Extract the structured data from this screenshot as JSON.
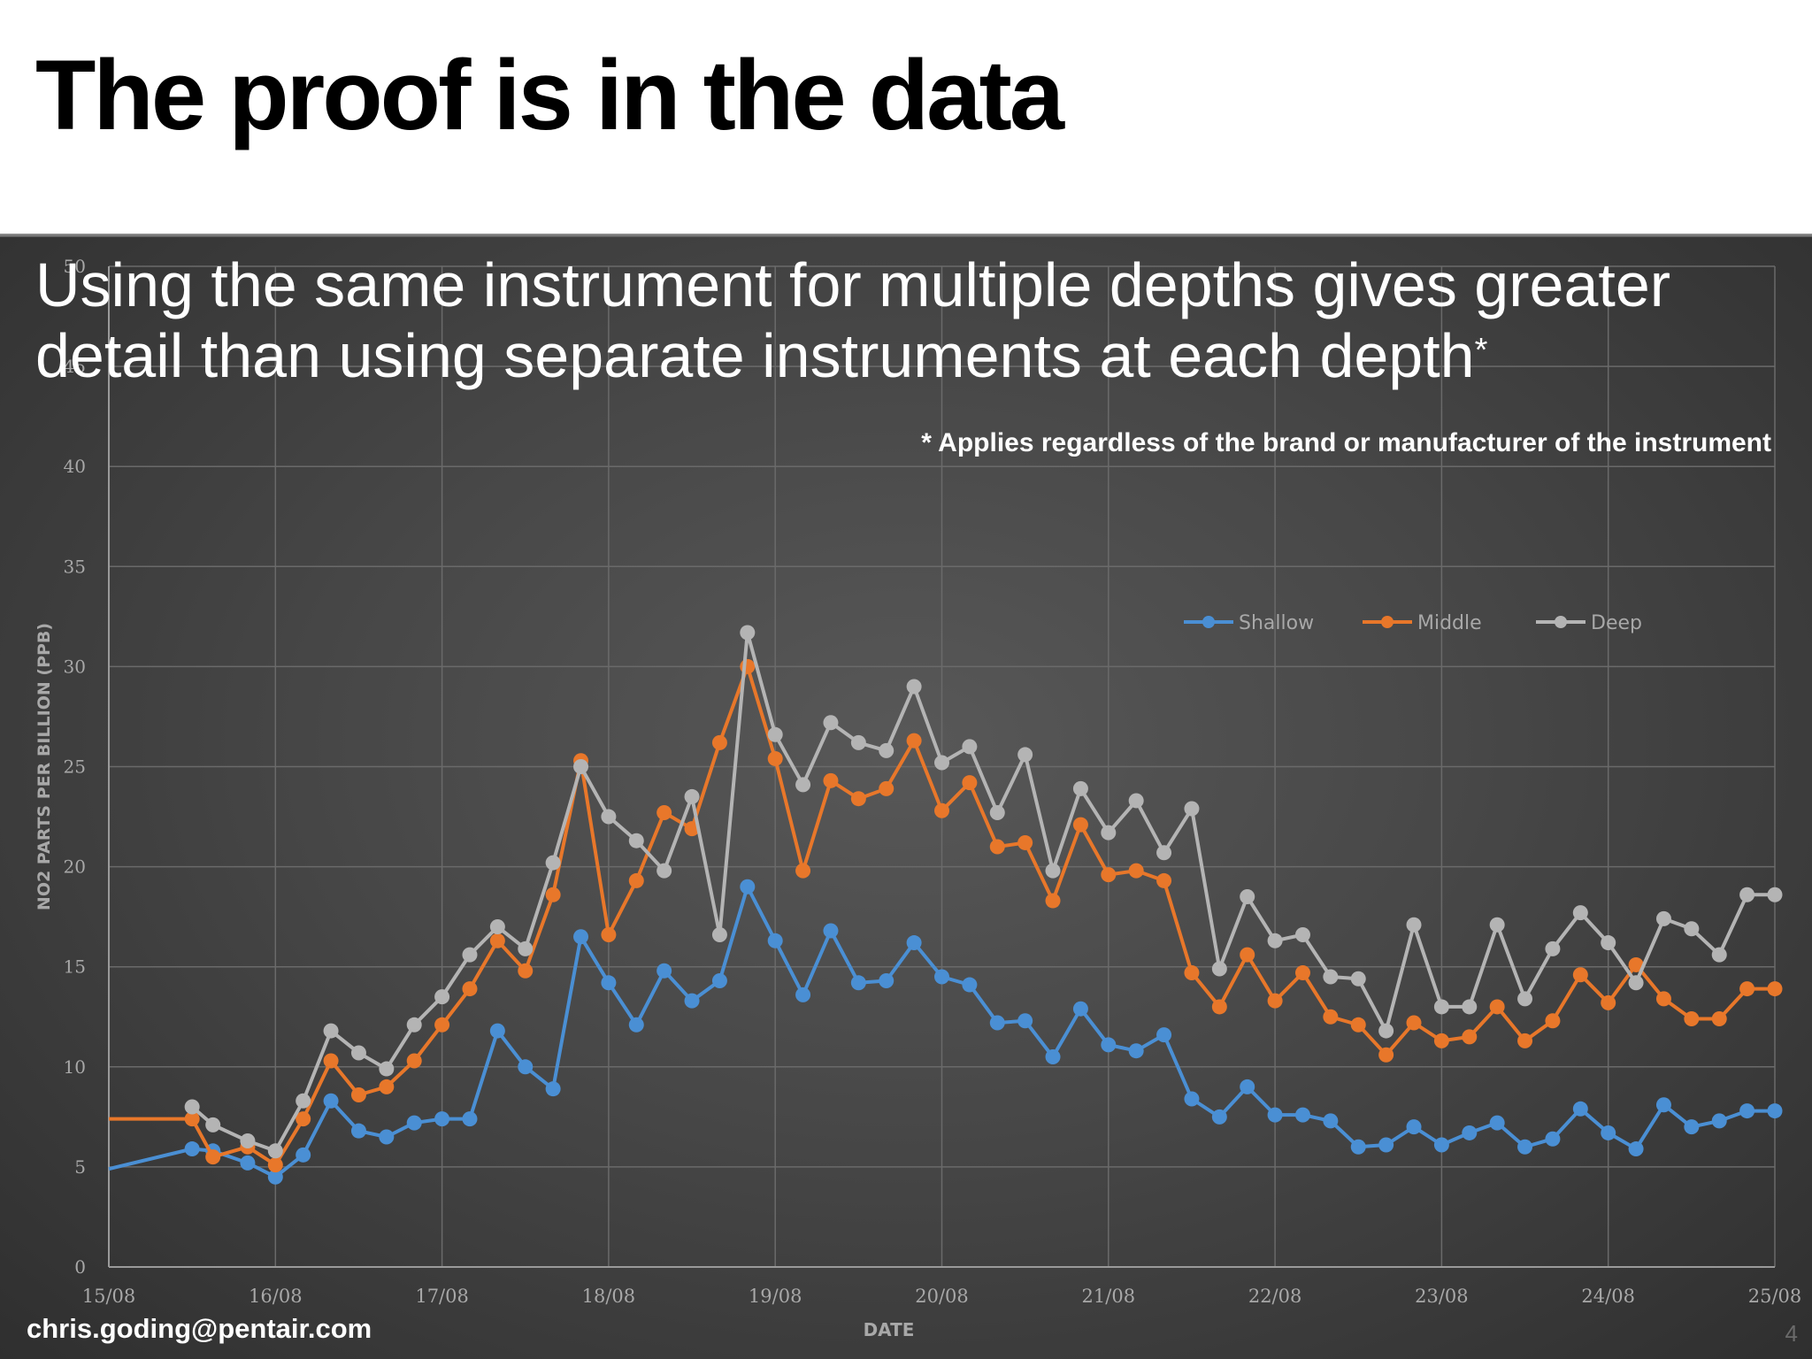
{
  "slide": {
    "title": "The proof is in the data",
    "subtitle": "Using the same instrument for multiple depths gives greater detail than using separate instruments at each depth",
    "subtitle_marker": "*",
    "footnote": "* Applies regardless of the brand or manufacturer of the instrument",
    "email": "chris.goding@pentair.com",
    "page_number": "4"
  },
  "colors": {
    "shallow": "#4a8fd4",
    "middle": "#e8772a",
    "deep": "#b4b4b4",
    "grid": "#6a6a6a",
    "axis_text": "#a8a8a8"
  },
  "chart_data": {
    "type": "line",
    "xlabel": "DATE",
    "ylabel": "NO2 PARTS PER BILLION (PPB)",
    "x_tick_labels": [
      "15/08",
      "16/08",
      "17/08",
      "18/08",
      "19/08",
      "20/08",
      "21/08",
      "22/08",
      "23/08",
      "24/08",
      "25/08"
    ],
    "xlim": [
      "15/08",
      "25/08"
    ],
    "ylim": [
      0,
      50
    ],
    "y_ticks": [
      0,
      5,
      10,
      15,
      20,
      25,
      30,
      35,
      40,
      45,
      50
    ],
    "grid": true,
    "legend_position": "top-right",
    "series": [
      {
        "name": "Shallow",
        "color": "#4a8fd4",
        "x": [
          "15/08 00:00",
          "15/08 12:00",
          "15/08 15:00",
          "15/08 20:00",
          "16/08 00:00",
          "16/08 04:00",
          "16/08 08:00",
          "16/08 12:00",
          "16/08 16:00",
          "16/08 20:00",
          "17/08 00:00",
          "17/08 04:00",
          "17/08 08:00",
          "17/08 12:00",
          "17/08 16:00",
          "17/08 20:00",
          "18/08 00:00",
          "18/08 04:00",
          "18/08 08:00",
          "18/08 12:00",
          "18/08 16:00",
          "18/08 20:00",
          "19/08 00:00",
          "19/08 04:00",
          "19/08 08:00",
          "19/08 12:00",
          "19/08 16:00",
          "19/08 20:00",
          "20/08 00:00",
          "20/08 04:00",
          "20/08 08:00",
          "20/08 12:00",
          "20/08 16:00",
          "20/08 20:00",
          "21/08 00:00",
          "21/08 04:00",
          "21/08 08:00",
          "21/08 12:00",
          "21/08 16:00",
          "21/08 20:00",
          "22/08 00:00",
          "22/08 04:00",
          "22/08 08:00",
          "22/08 12:00",
          "22/08 16:00",
          "22/08 20:00",
          "23/08 00:00",
          "23/08 04:00",
          "23/08 08:00",
          "23/08 12:00",
          "23/08 16:00",
          "23/08 20:00",
          "24/08 00:00",
          "24/08 04:00",
          "24/08 08:00",
          "24/08 12:00",
          "24/08 16:00",
          "24/08 20:00",
          "25/08 00:00"
        ],
        "values": [
          4.9,
          5.9,
          5.8,
          5.2,
          4.5,
          5.6,
          8.3,
          6.8,
          6.5,
          7.2,
          7.4,
          7.4,
          11.8,
          10,
          8.9,
          16.5,
          14.2,
          12.1,
          14.8,
          13.3,
          14.3,
          19,
          16.3,
          13.6,
          16.8,
          14.2,
          14.3,
          16.2,
          14.5,
          14.1,
          12.2,
          12.3,
          10.5,
          12.9,
          11.1,
          10.8,
          11.6,
          8.4,
          7.5,
          9,
          7.6,
          7.6,
          7.3,
          6,
          6.1,
          7,
          6.1,
          6.7,
          7.2,
          6,
          6.4,
          7.9,
          6.7,
          5.9,
          8.1,
          7,
          7.3,
          7.8,
          7.8
        ]
      },
      {
        "name": "Middle",
        "color": "#e8772a",
        "x": [
          "15/08 00:00",
          "15/08 12:00",
          "15/08 15:00",
          "15/08 20:00",
          "16/08 00:00",
          "16/08 04:00",
          "16/08 08:00",
          "16/08 12:00",
          "16/08 16:00",
          "16/08 20:00",
          "17/08 00:00",
          "17/08 04:00",
          "17/08 08:00",
          "17/08 12:00",
          "17/08 16:00",
          "17/08 20:00",
          "18/08 00:00",
          "18/08 04:00",
          "18/08 08:00",
          "18/08 12:00",
          "18/08 16:00",
          "18/08 20:00",
          "19/08 00:00",
          "19/08 04:00",
          "19/08 08:00",
          "19/08 12:00",
          "19/08 16:00",
          "19/08 20:00",
          "20/08 00:00",
          "20/08 04:00",
          "20/08 08:00",
          "20/08 12:00",
          "20/08 16:00",
          "20/08 20:00",
          "21/08 00:00",
          "21/08 04:00",
          "21/08 08:00",
          "21/08 12:00",
          "21/08 16:00",
          "21/08 20:00",
          "22/08 00:00",
          "22/08 04:00",
          "22/08 08:00",
          "22/08 12:00",
          "22/08 16:00",
          "22/08 20:00",
          "23/08 00:00",
          "23/08 04:00",
          "23/08 08:00",
          "23/08 12:00",
          "23/08 16:00",
          "23/08 20:00",
          "24/08 00:00",
          "24/08 04:00",
          "24/08 08:00",
          "24/08 12:00",
          "24/08 16:00",
          "24/08 20:00",
          "25/08 00:00"
        ],
        "values": [
          7.4,
          7.4,
          5.5,
          6,
          5.1,
          7.4,
          10.3,
          8.6,
          9,
          10.3,
          12.1,
          13.9,
          16.3,
          14.8,
          18.6,
          25.3,
          16.6,
          19.3,
          22.7,
          21.9,
          26.2,
          30,
          25.4,
          19.8,
          24.3,
          23.4,
          23.9,
          26.3,
          22.8,
          24.2,
          21,
          21.2,
          18.3,
          22.1,
          19.6,
          19.8,
          19.3,
          14.7,
          13,
          15.6,
          13.3,
          14.7,
          12.5,
          12.1,
          10.6,
          12.2,
          11.3,
          11.5,
          13,
          11.3,
          12.3,
          14.6,
          13.2,
          15.1,
          13.4,
          12.4,
          12.4,
          13.9,
          13.9
        ]
      },
      {
        "name": "Deep",
        "color": "#b4b4b4",
        "x": [
          "15/08 12:00",
          "15/08 15:00",
          "15/08 20:00",
          "16/08 00:00",
          "16/08 04:00",
          "16/08 08:00",
          "16/08 12:00",
          "16/08 16:00",
          "16/08 20:00",
          "17/08 00:00",
          "17/08 04:00",
          "17/08 08:00",
          "17/08 12:00",
          "17/08 16:00",
          "17/08 20:00",
          "18/08 00:00",
          "18/08 04:00",
          "18/08 08:00",
          "18/08 12:00",
          "18/08 16:00",
          "18/08 20:00",
          "19/08 00:00",
          "19/08 04:00",
          "19/08 08:00",
          "19/08 12:00",
          "19/08 16:00",
          "19/08 20:00",
          "20/08 00:00",
          "20/08 04:00",
          "20/08 08:00",
          "20/08 12:00",
          "20/08 16:00",
          "20/08 20:00",
          "21/08 00:00",
          "21/08 04:00",
          "21/08 08:00",
          "21/08 12:00",
          "21/08 16:00",
          "21/08 20:00",
          "22/08 00:00",
          "22/08 04:00",
          "22/08 08:00",
          "22/08 12:00",
          "22/08 16:00",
          "22/08 20:00",
          "23/08 00:00",
          "23/08 04:00",
          "23/08 08:00",
          "23/08 12:00",
          "23/08 16:00",
          "23/08 20:00",
          "24/08 00:00",
          "24/08 04:00",
          "24/08 08:00",
          "24/08 12:00",
          "24/08 16:00",
          "24/08 20:00",
          "25/08 00:00"
        ],
        "values": [
          8,
          7.1,
          6.3,
          5.8,
          8.3,
          11.8,
          10.7,
          9.9,
          12.1,
          13.5,
          15.6,
          17,
          15.9,
          20.2,
          25,
          22.5,
          21.3,
          19.8,
          23.5,
          16.6,
          31.7,
          26.6,
          24.1,
          27.2,
          26.2,
          25.8,
          29,
          25.2,
          26,
          22.7,
          25.6,
          19.8,
          23.9,
          21.7,
          23.3,
          20.7,
          22.9,
          14.9,
          18.5,
          16.3,
          16.6,
          14.5,
          14.4,
          11.8,
          17.1,
          13,
          13,
          17.1,
          13.4,
          15.9,
          17.7,
          16.2,
          14.2,
          17.4,
          16.9,
          15.6,
          18.6,
          18.6
        ]
      }
    ]
  }
}
